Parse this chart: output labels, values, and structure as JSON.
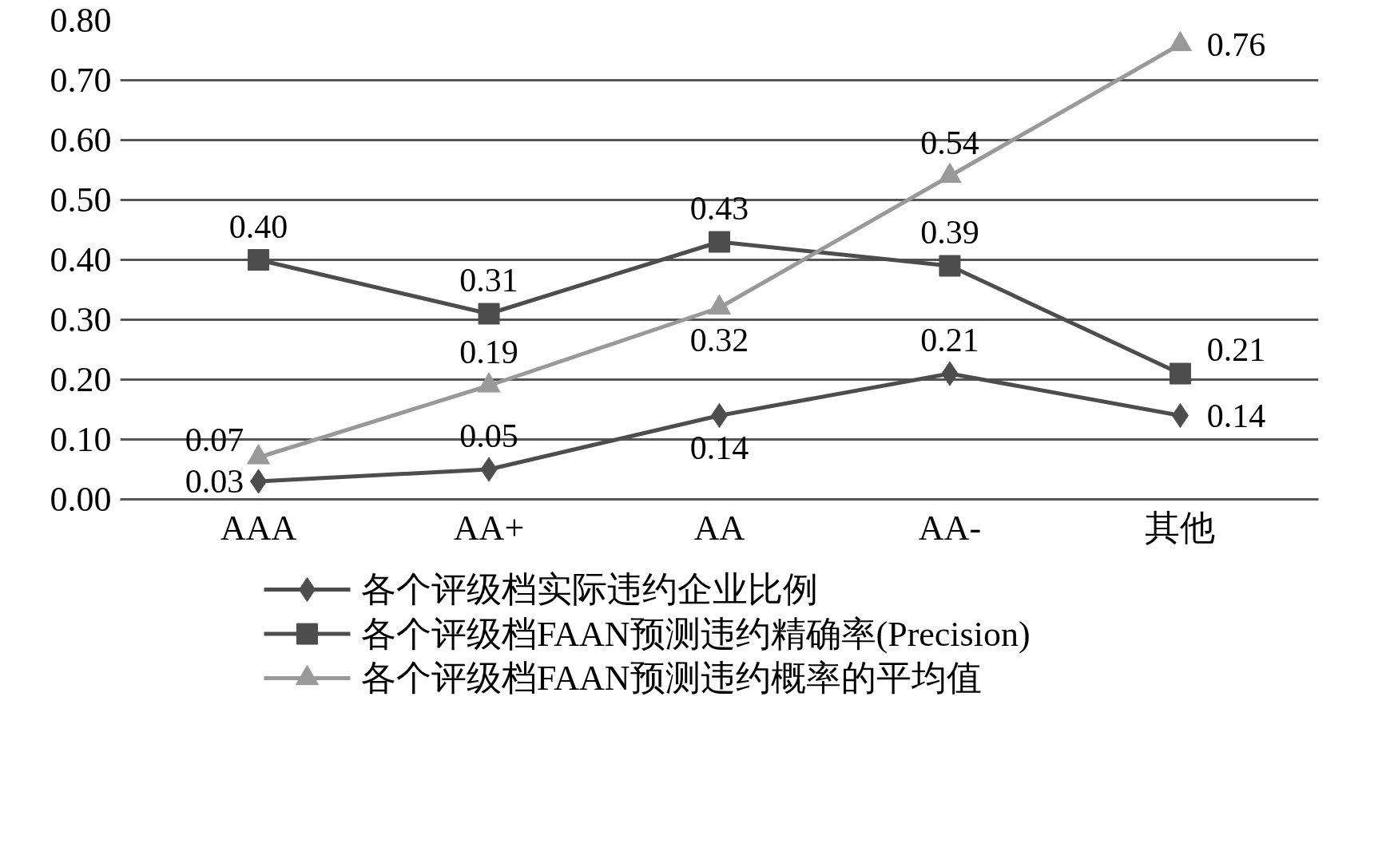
{
  "chart_data": {
    "type": "line",
    "categories": [
      "AAA",
      "AA+",
      "AA",
      "AA-",
      "其他"
    ],
    "series": [
      {
        "name": "各个评级档实际违约企业比例",
        "color": "#4d4d4d",
        "marker": "diamond",
        "values": [
          0.03,
          0.05,
          0.14,
          0.21,
          0.14
        ],
        "value_labels": [
          "0.03",
          "0.05",
          "0.14",
          "0.21",
          "0.14"
        ]
      },
      {
        "name": "各个评级档FAAN预测违约精确率(Precision)",
        "color": "#4d4d4d",
        "marker": "square",
        "values": [
          0.4,
          0.31,
          0.43,
          0.39,
          0.21
        ],
        "value_labels": [
          "0.40",
          "0.31",
          "0.43",
          "0.39",
          "0.21"
        ]
      },
      {
        "name": "各个评级档FAAN预测违约概率的平均值",
        "color": "#999999",
        "marker": "triangle",
        "values": [
          0.07,
          0.19,
          0.32,
          0.54,
          0.76
        ],
        "value_labels": [
          "0.07",
          "0.19",
          "0.32",
          "0.54",
          "0.76"
        ]
      }
    ],
    "ylim": [
      0,
      0.8
    ],
    "yticks": [
      {
        "value": 0,
        "label": "0.00"
      },
      {
        "value": 0.1,
        "label": "0.10"
      },
      {
        "value": 0.2,
        "label": "0.20"
      },
      {
        "value": 0.3,
        "label": "0.30"
      },
      {
        "value": 0.4,
        "label": "0.40"
      },
      {
        "value": 0.5,
        "label": "0.50"
      },
      {
        "value": 0.6,
        "label": "0.60"
      },
      {
        "value": 0.7,
        "label": "0.70"
      },
      {
        "value": 0.8,
        "label": "0.80"
      }
    ],
    "grid": "y",
    "legend": "bottom",
    "line_style": "solid"
  }
}
